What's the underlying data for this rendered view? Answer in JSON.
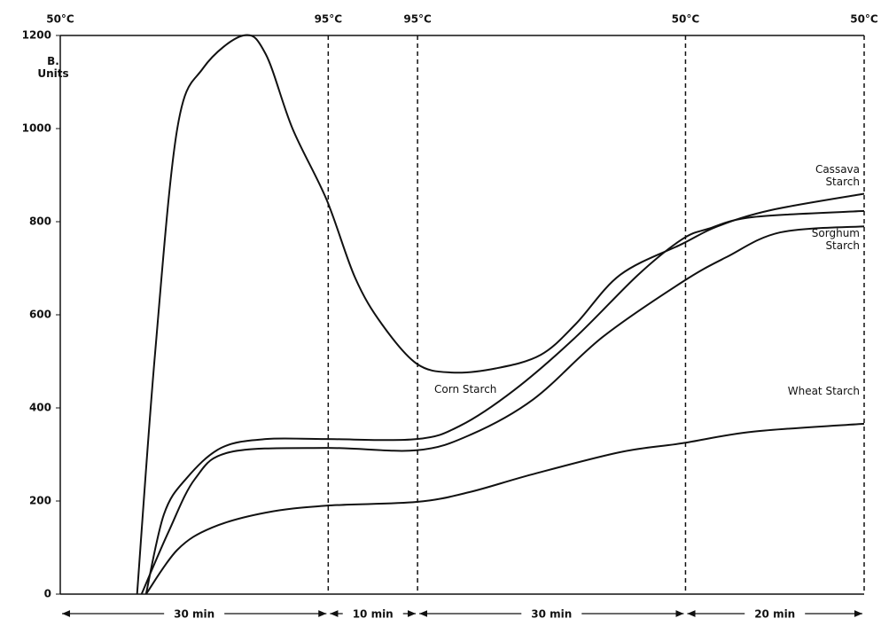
{
  "chart_data": {
    "type": "line",
    "ylabel": "B. Units",
    "xlim": [
      0,
      90
    ],
    "xticks": [
      {
        "value": 0,
        "label": "50°C"
      },
      {
        "value": 30,
        "label": "95°C"
      },
      {
        "value": 40,
        "label": "95°C"
      },
      {
        "value": 70,
        "label": "50°C"
      },
      {
        "value": 90,
        "label": "50°C"
      }
    ],
    "durations": [
      "30 min",
      "10 min",
      "30 min",
      "20 min"
    ],
    "ylim": [
      0,
      1200
    ],
    "yticks": [
      0,
      200,
      400,
      600,
      800,
      1000,
      1200
    ],
    "series": [
      {
        "name": "Cassava Starch",
        "color": "#111111",
        "x": [
          8.6,
          10.6,
          13.1,
          16,
          20.5,
          23,
          26,
          29.8,
          33,
          36,
          39.9,
          43.8,
          48.8,
          53.8,
          57.7,
          62.7,
          69.6,
          73.6,
          79.6,
          90
        ],
        "values": [
          0,
          514,
          1000,
          1130,
          1200,
          1160,
          1000,
          848,
          680,
          580,
          495,
          476,
          485,
          514,
          580,
          686,
          752,
          790,
          825,
          860
        ]
      },
      {
        "name": "Corn Starch",
        "color": "#111111",
        "x": [
          9.6,
          11.6,
          14.1,
          18,
          23,
          29.8,
          39.9,
          44.8,
          50.8,
          57.7,
          64.7,
          69.6,
          72.6,
          77.6,
          90
        ],
        "values": [
          0,
          171,
          248,
          314,
          333,
          333,
          333,
          362,
          438,
          552,
          686,
          762,
          785,
          810,
          823
        ]
      },
      {
        "name": "Sorghum Starch",
        "color": "#111111",
        "x": [
          9.1,
          12.1,
          15.1,
          19,
          29.8,
          39.9,
          46,
          53,
          60.7,
          69.6,
          74.6,
          80.6,
          90
        ],
        "values": [
          0,
          133,
          248,
          305,
          314,
          309,
          343,
          419,
          552,
          670,
          724,
          777,
          790
        ]
      },
      {
        "name": "Wheat Starch",
        "color": "#111111",
        "x": [
          9.6,
          13.1,
          17,
          23,
          29.8,
          39.9,
          45.8,
          52.8,
          62.7,
          69.6,
          77.6,
          90
        ],
        "values": [
          0,
          95,
          143,
          175,
          190,
          198,
          219,
          257,
          305,
          324,
          349,
          366
        ]
      }
    ]
  }
}
